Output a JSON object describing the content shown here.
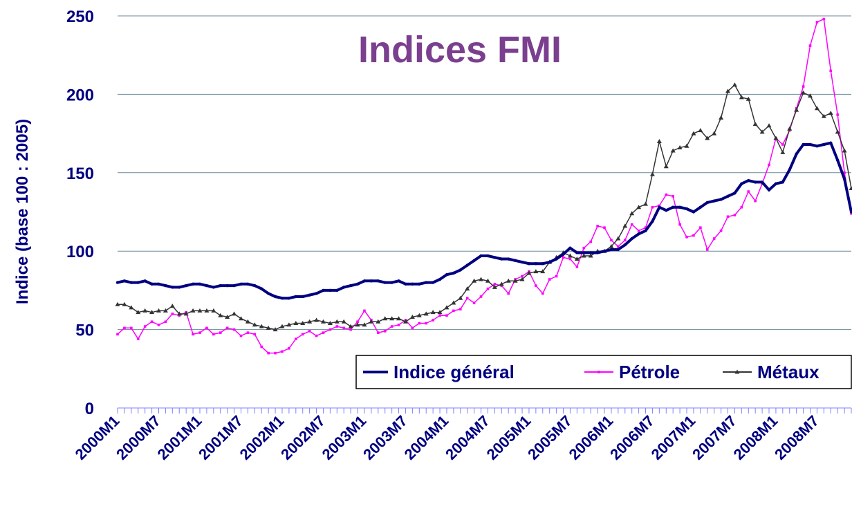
{
  "chart_data": {
    "type": "line",
    "title": "Indices FMI",
    "y_label": "Indice (base 100 : 2005)",
    "categories": [
      "2000M1",
      null,
      null,
      null,
      null,
      null,
      "2000M7",
      null,
      null,
      null,
      null,
      null,
      "2001M1",
      null,
      null,
      null,
      null,
      null,
      "2001M7",
      null,
      null,
      null,
      null,
      null,
      "2002M1",
      null,
      null,
      null,
      null,
      null,
      "2002M7",
      null,
      null,
      null,
      null,
      null,
      "2003M1",
      null,
      null,
      null,
      null,
      null,
      "2003M7",
      null,
      null,
      null,
      null,
      null,
      "2004M1",
      null,
      null,
      null,
      null,
      null,
      "2004M7",
      null,
      null,
      null,
      null,
      null,
      "2005M1",
      null,
      null,
      null,
      null,
      null,
      "2005M7",
      null,
      null,
      null,
      null,
      null,
      "2006M1",
      null,
      null,
      null,
      null,
      null,
      "2006M7",
      null,
      null,
      null,
      null,
      null,
      "2007M1",
      null,
      null,
      null,
      null,
      null,
      "2007M7",
      null,
      null,
      null,
      null,
      null,
      "2008M1",
      null,
      null,
      null,
      null,
      null,
      "2008M7",
      null,
      null,
      null,
      null,
      null
    ],
    "series": [
      {
        "name": "Indice général",
        "color": "#000080",
        "values": [
          80,
          81,
          80,
          80,
          81,
          79,
          79,
          78,
          77,
          77,
          78,
          79,
          79,
          78,
          77,
          78,
          78,
          78,
          79,
          79,
          78,
          76,
          73,
          71,
          70,
          70,
          71,
          71,
          72,
          73,
          75,
          75,
          75,
          77,
          78,
          79,
          81,
          81,
          81,
          80,
          80,
          81,
          79,
          79,
          79,
          80,
          80,
          82,
          85,
          86,
          88,
          91,
          94,
          97,
          97,
          96,
          95,
          95,
          94,
          93,
          92,
          92,
          92,
          93,
          95,
          98,
          102,
          99,
          99,
          99,
          99,
          100,
          101,
          101,
          104,
          108,
          111,
          113,
          119,
          128,
          126,
          128,
          128,
          127,
          125,
          128,
          131,
          132,
          133,
          135,
          137,
          143,
          145,
          144,
          144,
          139,
          143,
          144,
          152,
          162,
          168,
          168,
          167,
          168,
          169,
          158,
          146,
          125
        ]
      },
      {
        "name": "Pétrole",
        "color": "#ff00ff",
        "values": [
          47,
          51,
          51,
          44,
          52,
          55,
          53,
          55,
          60,
          59,
          61,
          47,
          48,
          51,
          47,
          48,
          51,
          50,
          46,
          48,
          47,
          39,
          35,
          35,
          36,
          38,
          44,
          47,
          49,
          46,
          48,
          50,
          52,
          51,
          50,
          55,
          62,
          56,
          48,
          49,
          52,
          53,
          56,
          51,
          54,
          54,
          56,
          59,
          59,
          62,
          63,
          70,
          67,
          71,
          76,
          79,
          78,
          73,
          82,
          84,
          87,
          78,
          73,
          82,
          84,
          96,
          95,
          90,
          102,
          106,
          116,
          115,
          107,
          103,
          107,
          117,
          113,
          115,
          128,
          129,
          136,
          135,
          117,
          109,
          110,
          115,
          101,
          108,
          113,
          122,
          123,
          128,
          138,
          132,
          143,
          155,
          172,
          168,
          177,
          191,
          205,
          231,
          246,
          248,
          215,
          187,
          150,
          124
        ]
      },
      {
        "name": "Métaux",
        "color": "#333333",
        "values": [
          66,
          66,
          64,
          61,
          62,
          61,
          62,
          62,
          65,
          60,
          60,
          62,
          62,
          62,
          62,
          59,
          58,
          60,
          57,
          55,
          53,
          52,
          51,
          50,
          52,
          53,
          54,
          54,
          55,
          56,
          55,
          54,
          55,
          55,
          52,
          53,
          53,
          55,
          55,
          57,
          57,
          57,
          55,
          58,
          59,
          60,
          61,
          61,
          64,
          67,
          70,
          76,
          81,
          82,
          81,
          77,
          79,
          81,
          81,
          82,
          86,
          87,
          87,
          93,
          96,
          99,
          97,
          95,
          97,
          97,
          100,
          100,
          103,
          108,
          116,
          124,
          128,
          130,
          149,
          170,
          154,
          164,
          166,
          167,
          175,
          177,
          172,
          175,
          185,
          202,
          206,
          198,
          197,
          181,
          176,
          180,
          172,
          163,
          178,
          190,
          201,
          199,
          191,
          186,
          188,
          176,
          164,
          140
        ]
      }
    ],
    "ylim": [
      0,
      250
    ],
    "yticks": [
      0,
      50,
      100,
      150,
      200,
      250
    ],
    "grid": true,
    "legend": "lower right"
  }
}
